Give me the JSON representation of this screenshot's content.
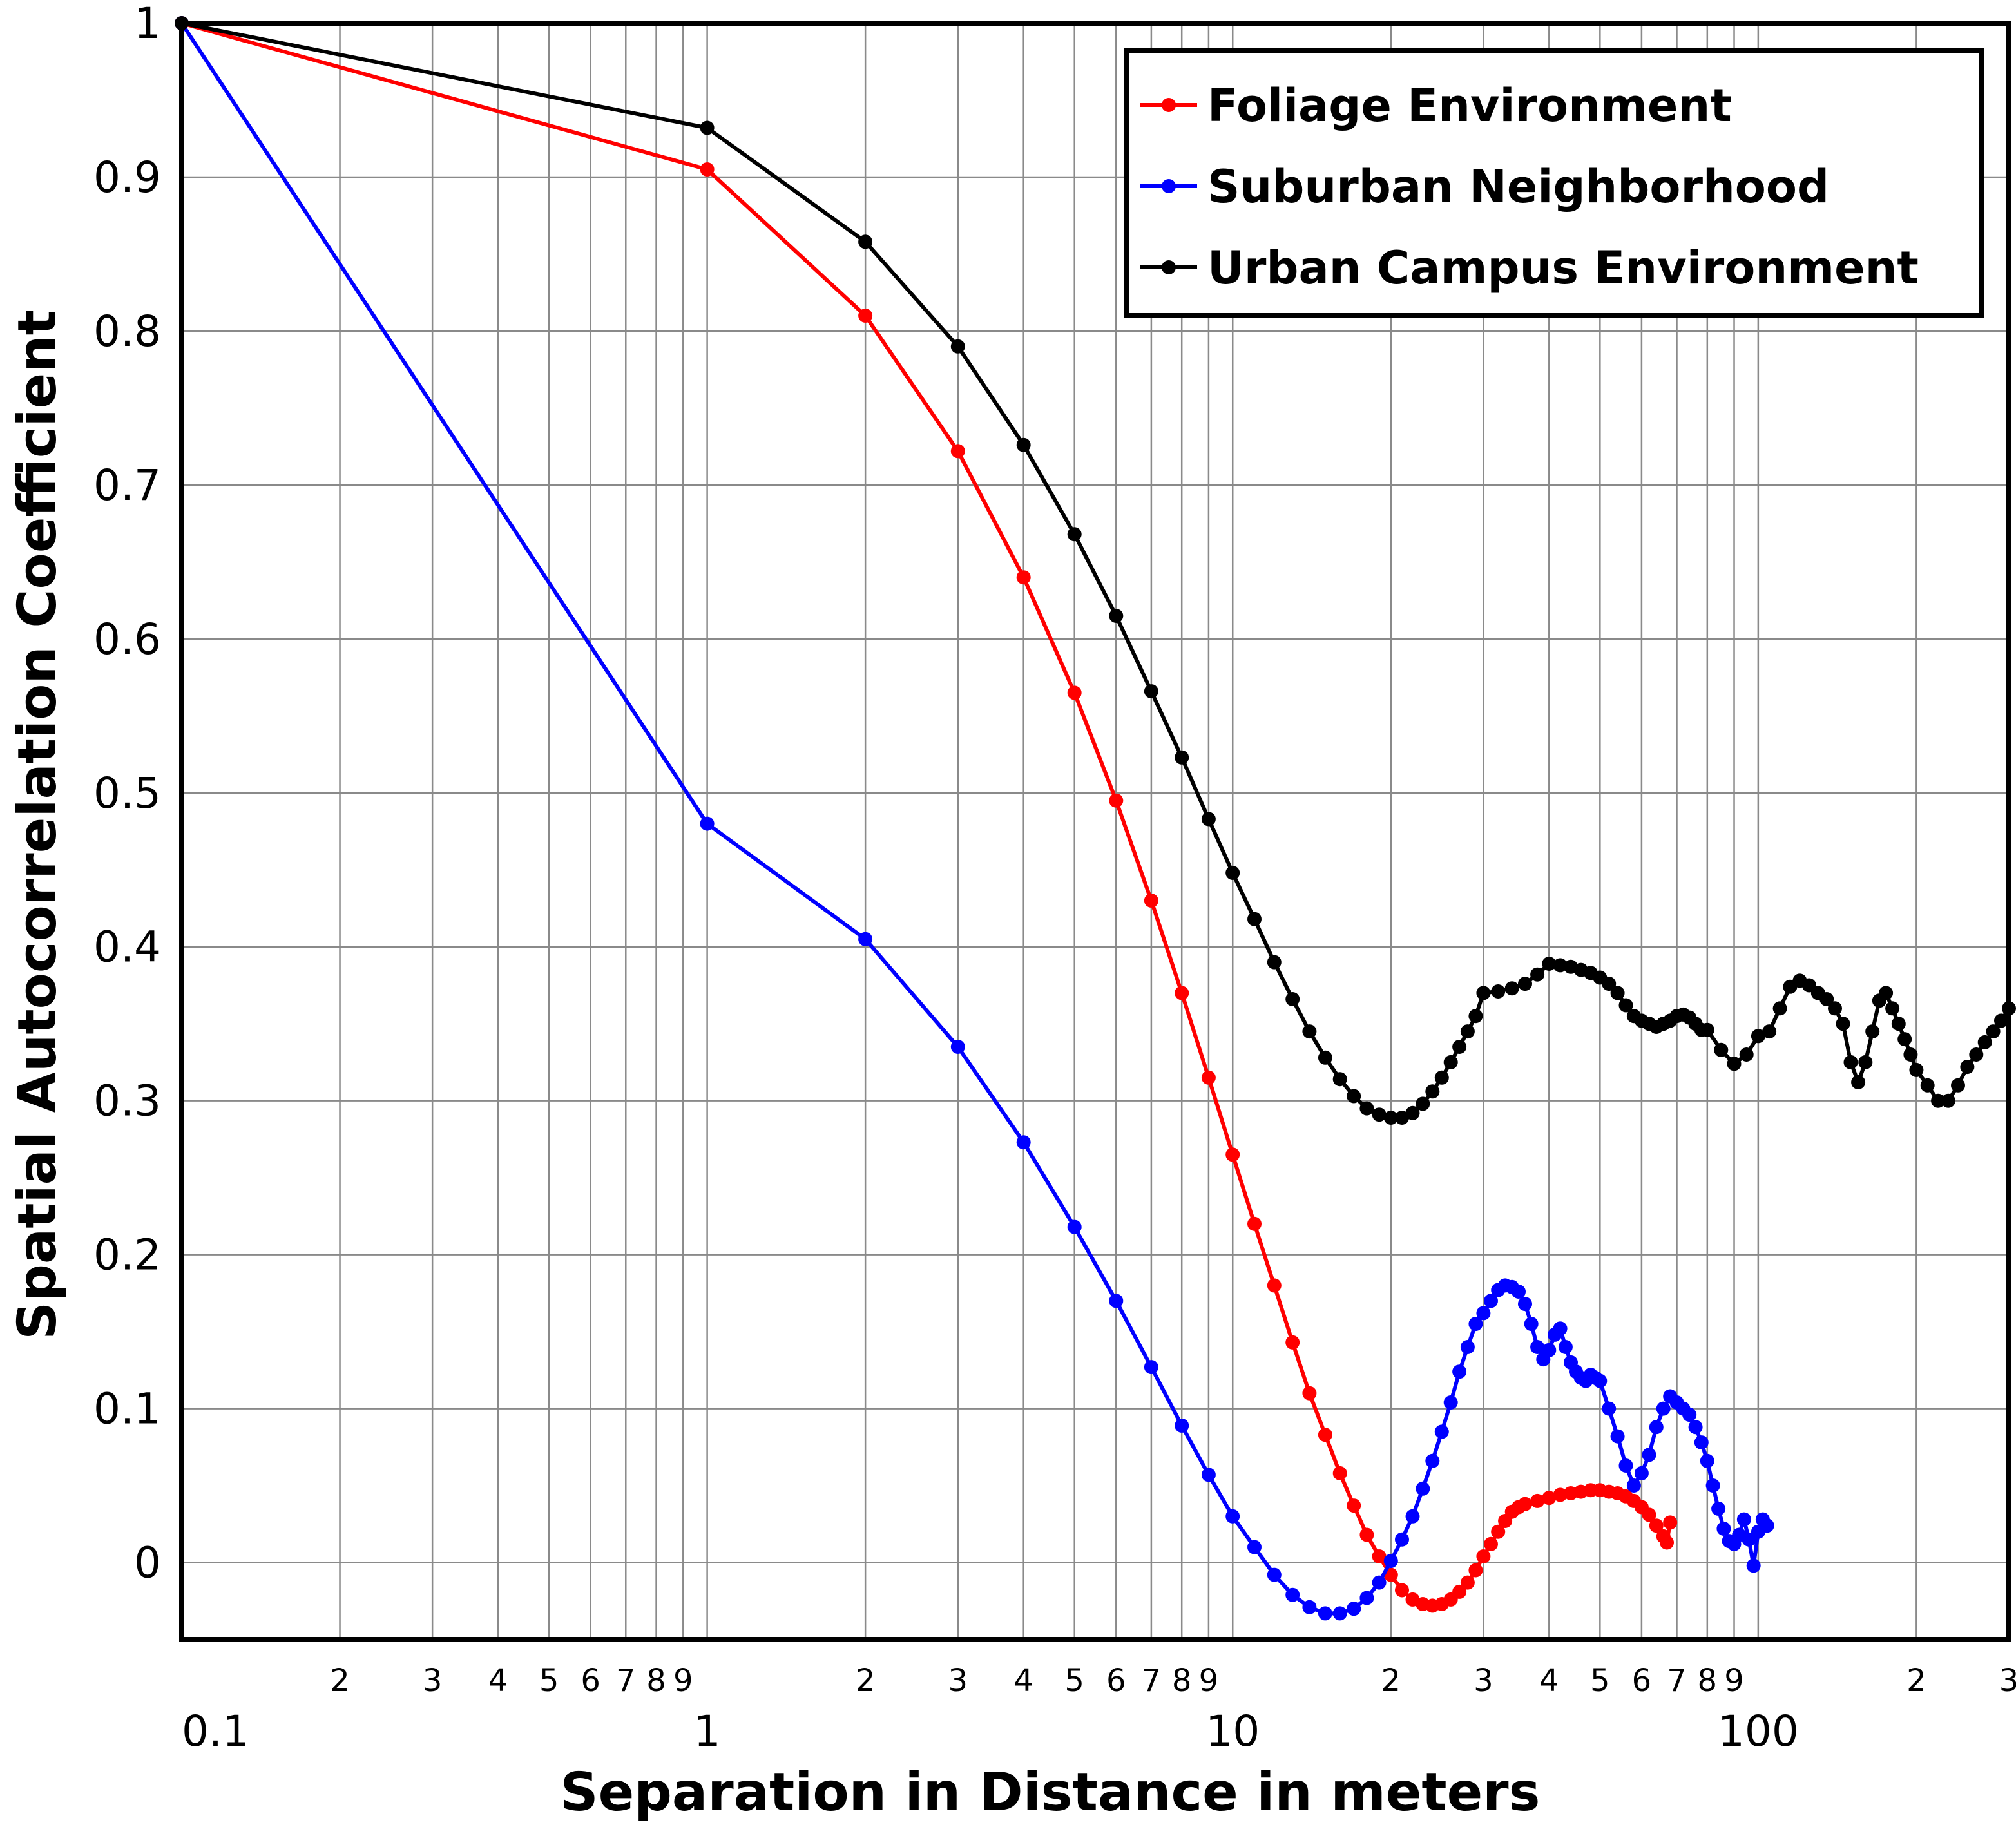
{
  "chart_data": {
    "type": "line",
    "xlabel": "Separation in Distance in meters",
    "ylabel": "Spatial Autocorrelation Coefficient",
    "xscale": "log",
    "xlim": [
      0.1,
      300
    ],
    "ylim": [
      -0.05,
      1
    ],
    "grid": true,
    "legend_position": "top-right",
    "x_major_ticks": [
      {
        "value": 0.1,
        "label": "0.1"
      },
      {
        "value": 1,
        "label": "1"
      },
      {
        "value": 10,
        "label": "10"
      },
      {
        "value": 100,
        "label": "100"
      }
    ],
    "x_minor_ticks": [
      {
        "value": 0.2,
        "label": "2"
      },
      {
        "value": 0.3,
        "label": "3"
      },
      {
        "value": 0.4,
        "label": "4"
      },
      {
        "value": 0.5,
        "label": "5"
      },
      {
        "value": 0.6,
        "label": "6"
      },
      {
        "value": 0.7,
        "label": "7"
      },
      {
        "value": 0.8,
        "label": "8"
      },
      {
        "value": 0.9,
        "label": "9"
      },
      {
        "value": 2,
        "label": "2"
      },
      {
        "value": 3,
        "label": "3"
      },
      {
        "value": 4,
        "label": "4"
      },
      {
        "value": 5,
        "label": "5"
      },
      {
        "value": 6,
        "label": "6"
      },
      {
        "value": 7,
        "label": "7"
      },
      {
        "value": 8,
        "label": "8"
      },
      {
        "value": 9,
        "label": "9"
      },
      {
        "value": 20,
        "label": "2"
      },
      {
        "value": 30,
        "label": "3"
      },
      {
        "value": 40,
        "label": "4"
      },
      {
        "value": 50,
        "label": "5"
      },
      {
        "value": 60,
        "label": "6"
      },
      {
        "value": 70,
        "label": "7"
      },
      {
        "value": 80,
        "label": "8"
      },
      {
        "value": 90,
        "label": "9"
      },
      {
        "value": 200,
        "label": "2"
      },
      {
        "value": 300,
        "label": "3"
      }
    ],
    "y_ticks": [
      {
        "value": 0,
        "label": "0"
      },
      {
        "value": 0.1,
        "label": "0.1"
      },
      {
        "value": 0.2,
        "label": "0.2"
      },
      {
        "value": 0.3,
        "label": "0.3"
      },
      {
        "value": 0.4,
        "label": "0.4"
      },
      {
        "value": 0.5,
        "label": "0.5"
      },
      {
        "value": 0.6,
        "label": "0.6"
      },
      {
        "value": 0.7,
        "label": "0.7"
      },
      {
        "value": 0.8,
        "label": "0.8"
      },
      {
        "value": 0.9,
        "label": "0.9"
      },
      {
        "value": 1,
        "label": "1"
      }
    ],
    "series": [
      {
        "name": "Foliage Environment",
        "color": "#ff0000",
        "x": [
          0.1,
          1,
          2,
          3,
          4,
          5,
          6,
          7,
          8,
          9,
          10,
          11,
          12,
          13,
          14,
          15,
          16,
          17,
          18,
          19,
          20,
          21,
          22,
          23,
          24,
          25,
          26,
          27,
          28,
          29,
          30,
          31,
          32,
          33,
          34,
          35,
          36,
          38,
          40,
          42,
          44,
          46,
          48,
          50,
          52,
          54,
          56,
          58,
          60,
          62,
          64,
          66,
          67,
          68
        ],
        "y": [
          1,
          0.905,
          0.81,
          0.722,
          0.64,
          0.565,
          0.495,
          0.43,
          0.37,
          0.315,
          0.265,
          0.22,
          0.18,
          0.143,
          0.11,
          0.083,
          0.058,
          0.037,
          0.018,
          0.004,
          -0.008,
          -0.018,
          -0.024,
          -0.027,
          -0.028,
          -0.027,
          -0.024,
          -0.019,
          -0.013,
          -0.005,
          0.004,
          0.012,
          0.02,
          0.027,
          0.033,
          0.036,
          0.038,
          0.04,
          0.042,
          0.044,
          0.045,
          0.046,
          0.047,
          0.047,
          0.046,
          0.045,
          0.043,
          0.04,
          0.036,
          0.031,
          0.024,
          0.017,
          0.013,
          0.026
        ]
      },
      {
        "name": "Suburban Neighborhood",
        "color": "#0000ff",
        "x": [
          0.1,
          1,
          2,
          3,
          4,
          5,
          6,
          7,
          8,
          9,
          10,
          11,
          12,
          13,
          14,
          15,
          16,
          17,
          18,
          19,
          20,
          21,
          22,
          23,
          24,
          25,
          26,
          27,
          28,
          29,
          30,
          31,
          32,
          33,
          34,
          35,
          36,
          37,
          38,
          39,
          40,
          41,
          42,
          43,
          44,
          45,
          46,
          47,
          48,
          49,
          50,
          52,
          54,
          56,
          58,
          60,
          62,
          64,
          66,
          68,
          70,
          72,
          74,
          76,
          78,
          80,
          82,
          84,
          86,
          88,
          90,
          92,
          94,
          96,
          98,
          100,
          102,
          104
        ],
        "y": [
          1,
          0.48,
          0.405,
          0.335,
          0.273,
          0.218,
          0.17,
          0.127,
          0.089,
          0.057,
          0.03,
          0.01,
          -0.008,
          -0.021,
          -0.029,
          -0.033,
          -0.033,
          -0.03,
          -0.023,
          -0.013,
          0.001,
          0.015,
          0.03,
          0.048,
          0.066,
          0.085,
          0.104,
          0.124,
          0.14,
          0.155,
          0.162,
          0.17,
          0.177,
          0.18,
          0.179,
          0.176,
          0.168,
          0.155,
          0.14,
          0.132,
          0.138,
          0.148,
          0.152,
          0.14,
          0.13,
          0.124,
          0.12,
          0.118,
          0.122,
          0.12,
          0.118,
          0.1,
          0.082,
          0.063,
          0.05,
          0.058,
          0.07,
          0.088,
          0.1,
          0.108,
          0.104,
          0.1,
          0.096,
          0.088,
          0.078,
          0.066,
          0.05,
          0.035,
          0.022,
          0.014,
          0.012,
          0.018,
          0.028,
          0.015,
          -0.002,
          0.02,
          0.028,
          0.024
        ]
      },
      {
        "name": "Urban Campus Environment",
        "color": "#000000",
        "x": [
          0.1,
          1,
          2,
          3,
          4,
          5,
          6,
          7,
          8,
          9,
          10,
          11,
          12,
          13,
          14,
          15,
          16,
          17,
          18,
          19,
          20,
          21,
          22,
          23,
          24,
          25,
          26,
          27,
          28,
          29,
          30,
          32,
          34,
          36,
          38,
          40,
          42,
          44,
          46,
          48,
          50,
          52,
          54,
          56,
          58,
          60,
          62,
          64,
          66,
          68,
          70,
          72,
          74,
          76,
          78,
          80,
          85,
          90,
          95,
          100,
          105,
          110,
          115,
          120,
          125,
          130,
          135,
          140,
          145,
          150,
          155,
          160,
          165,
          170,
          175,
          180,
          185,
          190,
          195,
          200,
          210,
          220,
          230,
          240,
          250,
          260,
          270,
          280,
          290,
          300
        ],
        "y": [
          1,
          0.932,
          0.858,
          0.79,
          0.726,
          0.668,
          0.615,
          0.566,
          0.523,
          0.483,
          0.448,
          0.418,
          0.39,
          0.366,
          0.345,
          0.328,
          0.314,
          0.303,
          0.295,
          0.291,
          0.289,
          0.289,
          0.292,
          0.298,
          0.306,
          0.315,
          0.325,
          0.335,
          0.345,
          0.355,
          0.37,
          0.371,
          0.373,
          0.376,
          0.382,
          0.389,
          0.388,
          0.387,
          0.385,
          0.383,
          0.38,
          0.376,
          0.37,
          0.362,
          0.355,
          0.352,
          0.35,
          0.348,
          0.35,
          0.352,
          0.355,
          0.356,
          0.354,
          0.35,
          0.346,
          0.346,
          0.333,
          0.324,
          0.33,
          0.342,
          0.345,
          0.36,
          0.374,
          0.378,
          0.375,
          0.37,
          0.366,
          0.36,
          0.35,
          0.325,
          0.312,
          0.325,
          0.345,
          0.365,
          0.37,
          0.36,
          0.35,
          0.34,
          0.33,
          0.32,
          0.31,
          0.3,
          0.3,
          0.31,
          0.322,
          0.33,
          0.338,
          0.345,
          0.352,
          0.36
        ]
      }
    ]
  }
}
